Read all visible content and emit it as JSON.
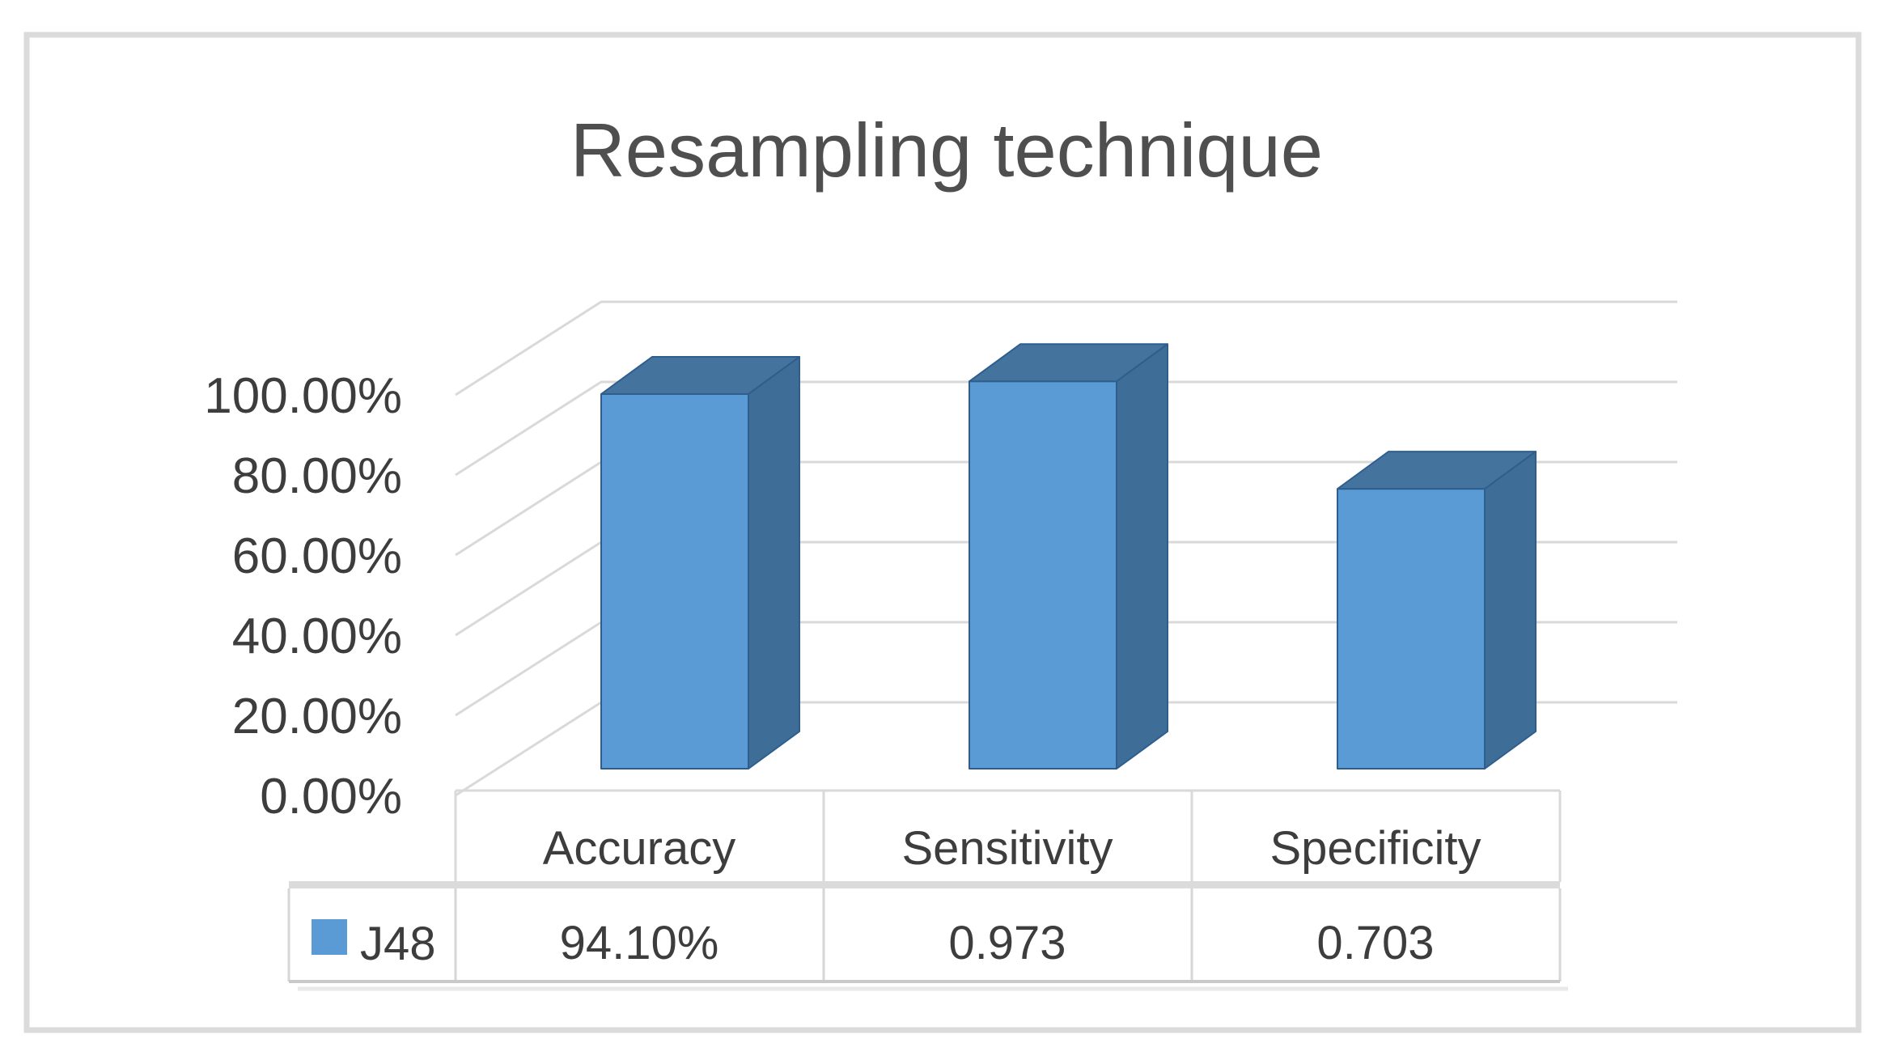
{
  "window": {
    "background": "#ffffff",
    "border_color": "#DBDBDB"
  },
  "chart_data": {
    "type": "bar",
    "variant": "3d-column",
    "title": "Resampling technique",
    "categories": [
      "Accuracy",
      "Sensitivity",
      "Specificity"
    ],
    "series": [
      {
        "name": "J48",
        "values": [
          0.941,
          0.973,
          0.703
        ],
        "color": "#5B9BD5"
      }
    ],
    "value_labels": [
      "94.10%",
      "0.973",
      "0.703"
    ],
    "y_tick_labels": [
      "100.00%",
      "80.00%",
      "60.00%",
      "40.00%",
      "20.00%",
      "0.00%"
    ],
    "ylim": [
      0,
      1.0
    ],
    "y_tick_step": 0.2,
    "grid": true,
    "legend_position": "bottom-table-left",
    "colors": {
      "bar_front": "#5B9BD5",
      "bar_top": "#44749E",
      "bar_side": "#3E6D98",
      "bar_edge": "#2D5E8E",
      "gridline": "#D9D9D9",
      "table_border": "#D6D6D6",
      "table_border_dark": "#C9C9C9",
      "table_shadow": "#E9E9E9",
      "axis_text": "#3D3D3D",
      "title_text": "#4F4F4F",
      "legend_swatch": "#5B9BD5"
    }
  },
  "table": {
    "legend_label": "J48",
    "headers": [
      "Accuracy",
      "Sensitivity",
      "Specificity"
    ],
    "values": [
      "94.10%",
      "0.973",
      "0.703"
    ]
  }
}
